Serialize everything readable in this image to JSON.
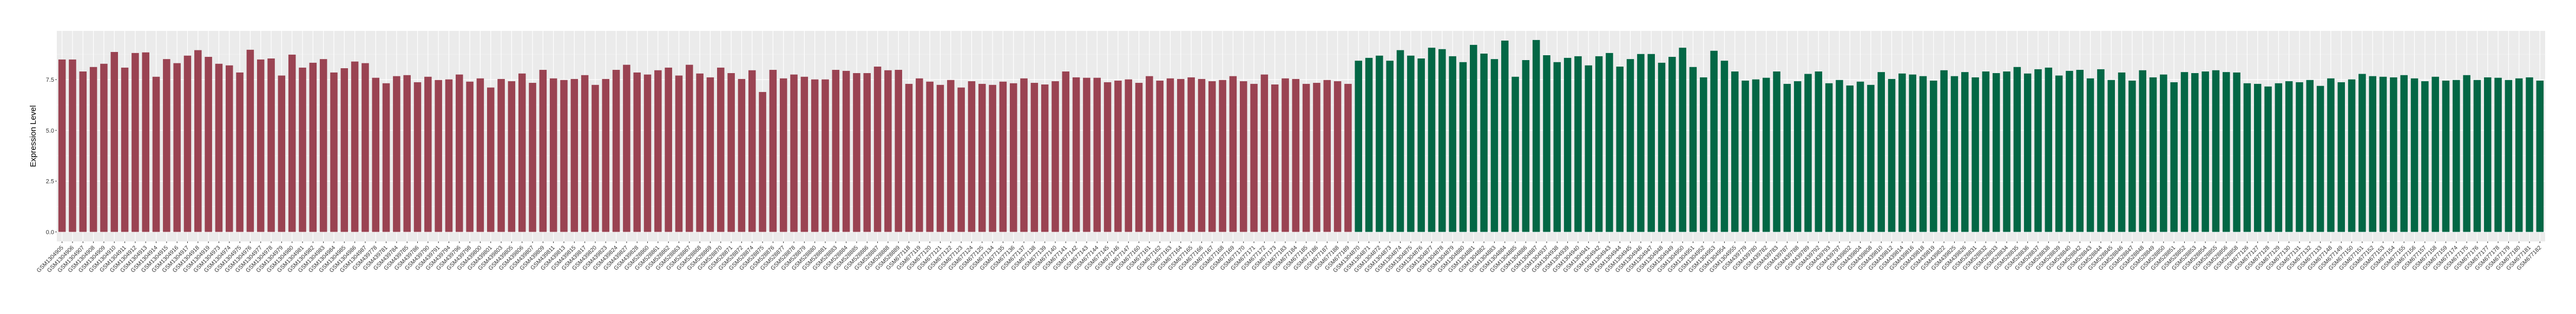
{
  "chart_data": {
    "type": "bar",
    "title": "",
    "xlabel": "",
    "ylabel": "Expression Level",
    "ylim": [
      -0.47,
      9.9
    ],
    "yticks": [
      "0.0",
      "2.5",
      "5.0",
      "7.5"
    ],
    "ytick_values": [
      0,
      2.5,
      5,
      7.5
    ],
    "grid": true,
    "legend": "none",
    "panel_background": "#EBEBEB",
    "series": [
      {
        "color": "#9A4352",
        "categories": [
          "GSM1304905",
          "GSM1304906",
          "GSM1304907",
          "GSM1304908",
          "GSM1304909",
          "GSM1304910",
          "GSM1304911",
          "GSM1304912",
          "GSM1304913",
          "GSM1304914",
          "GSM1304915",
          "GSM1304916",
          "GSM1304917",
          "GSM1304918",
          "GSM1304919",
          "GSM1304973",
          "GSM1304974",
          "GSM1304975",
          "GSM1304976",
          "GSM1304977",
          "GSM1304978",
          "GSM1304979",
          "GSM1304980",
          "GSM1304981",
          "GSM1304982",
          "GSM1304983",
          "GSM1304984",
          "GSM1304985",
          "GSM1304986",
          "GSM1304987",
          "GSM439778",
          "GSM439781",
          "GSM439784",
          "GSM439785",
          "GSM439786",
          "GSM439790",
          "GSM439791",
          "GSM439794",
          "GSM439796",
          "GSM439798",
          "GSM439800",
          "GSM439801",
          "GSM439803",
          "GSM439805",
          "GSM439806",
          "GSM439807",
          "GSM439809",
          "GSM439811",
          "GSM439813",
          "GSM439815",
          "GSM439817",
          "GSM439820",
          "GSM439823",
          "GSM439824",
          "GSM439827",
          "GSM439828",
          "GSM528860",
          "GSM528861",
          "GSM528862",
          "GSM528863",
          "GSM528867",
          "GSM528868",
          "GSM528869",
          "GSM528870",
          "GSM528871",
          "GSM528872",
          "GSM528874",
          "GSM528875",
          "GSM528876",
          "GSM528877",
          "GSM528878",
          "GSM528879",
          "GSM528880",
          "GSM528881",
          "GSM528883",
          "GSM528884",
          "GSM528885",
          "GSM528886",
          "GSM528887",
          "GSM528888",
          "GSM528889",
          "GSM677118",
          "GSM677119",
          "GSM677120",
          "GSM677121",
          "GSM677122",
          "GSM677123",
          "GSM677124",
          "GSM677125",
          "GSM677134",
          "GSM677135",
          "GSM677136",
          "GSM677137",
          "GSM677138",
          "GSM677139",
          "GSM677140",
          "GSM677141",
          "GSM677142",
          "GSM677143",
          "GSM677144",
          "GSM677145",
          "GSM677146",
          "GSM677147",
          "GSM677160",
          "GSM677161",
          "GSM677162",
          "GSM677163",
          "GSM677164",
          "GSM677165",
          "GSM677166",
          "GSM677167",
          "GSM677168",
          "GSM677169",
          "GSM677170",
          "GSM677171",
          "GSM677172",
          "GSM677173",
          "GSM677183",
          "GSM677184",
          "GSM677185",
          "GSM677186",
          "GSM677187",
          "GSM677188",
          "GSM677189"
        ],
        "values": [
          8.49,
          8.49,
          7.9,
          8.12,
          8.28,
          8.86,
          8.09,
          8.81,
          8.84,
          7.64,
          8.51,
          8.31,
          8.68,
          8.95,
          8.62,
          8.28,
          8.2,
          7.85,
          8.97,
          8.49,
          8.54,
          7.7,
          8.73,
          8.09,
          8.33,
          8.51,
          7.85,
          8.06,
          8.39,
          8.31,
          7.59,
          7.32,
          7.67,
          7.72,
          7.37,
          7.64,
          7.48,
          7.51,
          7.75,
          7.4,
          7.56,
          7.11,
          7.53,
          7.42,
          7.8,
          7.34,
          7.98,
          7.56,
          7.48,
          7.53,
          7.72,
          7.24,
          7.53,
          7.98,
          8.23,
          7.85,
          7.75,
          7.96,
          8.09,
          7.7,
          8.23,
          7.8,
          7.61,
          8.09,
          7.82,
          7.53,
          7.96,
          6.89,
          7.98,
          7.56,
          7.75,
          7.64,
          7.51,
          7.51,
          7.98,
          7.93,
          7.82,
          7.82,
          8.14,
          7.96,
          7.98,
          7.29,
          7.56,
          7.4,
          7.24,
          7.48,
          7.11,
          7.42,
          7.29,
          7.24,
          7.4,
          7.32,
          7.56,
          7.34,
          7.26,
          7.42,
          7.9,
          7.61,
          7.59,
          7.59,
          7.37,
          7.45,
          7.51,
          7.34,
          7.67,
          7.45,
          7.56,
          7.53,
          7.61,
          7.53,
          7.42,
          7.48,
          7.67,
          7.42,
          7.29,
          7.75,
          7.26,
          7.56,
          7.53,
          7.29,
          7.34,
          7.48,
          7.42,
          7.29
        ]
      },
      {
        "color": "#036745",
        "categories": [
          "GSM1304870",
          "GSM1304871",
          "GSM1304872",
          "GSM1304873",
          "GSM1304874",
          "GSM1304875",
          "GSM1304876",
          "GSM1304877",
          "GSM1304878",
          "GSM1304879",
          "GSM1304880",
          "GSM1304881",
          "GSM1304882",
          "GSM1304883",
          "GSM1304884",
          "GSM1304885",
          "GSM1304886",
          "GSM1304887",
          "GSM1304937",
          "GSM1304938",
          "GSM1304939",
          "GSM1304940",
          "GSM1304941",
          "GSM1304942",
          "GSM1304943",
          "GSM1304944",
          "GSM1304945",
          "GSM1304946",
          "GSM1304947",
          "GSM1304948",
          "GSM1304949",
          "GSM1304950",
          "GSM1304951",
          "GSM1304952",
          "GSM1304953",
          "GSM1304954",
          "GSM1304955",
          "GSM439779",
          "GSM439780",
          "GSM439782",
          "GSM439783",
          "GSM439787",
          "GSM439788",
          "GSM439789",
          "GSM439792",
          "GSM439793",
          "GSM439797",
          "GSM439802",
          "GSM439804",
          "GSM439808",
          "GSM439810",
          "GSM439812",
          "GSM439814",
          "GSM439816",
          "GSM439818",
          "GSM439819",
          "GSM439822",
          "GSM439825",
          "GSM439826",
          "GSM528831",
          "GSM528832",
          "GSM528833",
          "GSM528834",
          "GSM528835",
          "GSM528836",
          "GSM528837",
          "GSM528838",
          "GSM528839",
          "GSM528840",
          "GSM528842",
          "GSM528843",
          "GSM528844",
          "GSM528845",
          "GSM528846",
          "GSM528847",
          "GSM528848",
          "GSM528849",
          "GSM528850",
          "GSM528851",
          "GSM528852",
          "GSM528853",
          "GSM528854",
          "GSM528855",
          "GSM528856",
          "GSM528858",
          "GSM677126",
          "GSM677127",
          "GSM677128",
          "GSM677129",
          "GSM677130",
          "GSM677131",
          "GSM677132",
          "GSM677133",
          "GSM677148",
          "GSM677149",
          "GSM677150",
          "GSM677151",
          "GSM677152",
          "GSM677153",
          "GSM677154",
          "GSM677155",
          "GSM677156",
          "GSM677157",
          "GSM677158",
          "GSM677159",
          "GSM677174",
          "GSM677175",
          "GSM677176",
          "GSM677177",
          "GSM677178",
          "GSM677179",
          "GSM677180",
          "GSM677181",
          "GSM677182"
        ],
        "values": [
          8.43,
          8.57,
          8.68,
          8.43,
          8.95,
          8.68,
          8.54,
          9.07,
          9.0,
          8.65,
          8.36,
          9.21,
          8.78,
          8.51,
          9.42,
          7.64,
          8.46,
          9.45,
          8.7,
          8.36,
          8.57,
          8.65,
          8.2,
          8.65,
          8.81,
          8.14,
          8.51,
          8.76,
          8.76,
          8.33,
          8.62,
          9.07,
          8.12,
          7.61,
          8.92,
          8.43,
          7.9,
          7.45,
          7.51,
          7.59,
          7.9,
          7.29,
          7.42,
          7.78,
          7.9,
          7.32,
          7.48,
          7.21,
          7.4,
          7.24,
          7.87,
          7.53,
          7.8,
          7.75,
          7.67,
          7.45,
          7.96,
          7.67,
          7.87,
          7.61,
          7.9,
          7.82,
          7.9,
          8.12,
          7.8,
          8.01,
          8.09,
          7.7,
          7.93,
          7.98,
          7.56,
          8.01,
          7.48,
          7.85,
          7.45,
          7.96,
          7.61,
          7.75,
          7.37,
          7.87,
          7.82,
          7.9,
          7.96,
          7.87,
          7.85,
          7.32,
          7.29,
          7.16,
          7.32,
          7.42,
          7.37,
          7.48,
          7.19,
          7.56,
          7.37,
          7.51,
          7.78,
          7.67,
          7.64,
          7.61,
          7.72,
          7.56,
          7.42,
          7.64,
          7.45,
          7.48,
          7.72,
          7.48,
          7.61,
          7.59,
          7.48,
          7.56,
          7.61,
          7.45
        ]
      }
    ]
  }
}
